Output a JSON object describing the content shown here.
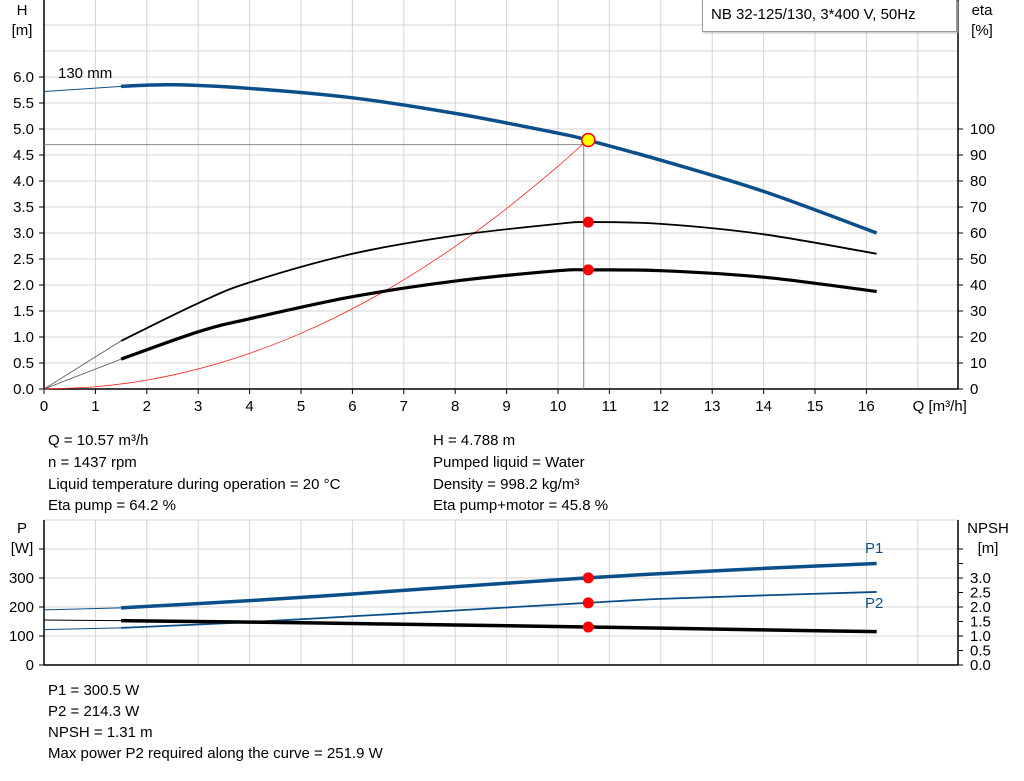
{
  "title_box": "NB 32-125/130, 3*400 V, 50Hz",
  "colors": {
    "head": "#0b4f8a",
    "eta": "#000000",
    "system": "#ff2020",
    "power": "#0b4f8a",
    "npsh": "#000000",
    "marker": "#ff0000",
    "op_point": "#ffff00"
  },
  "chart_data": [
    {
      "type": "line",
      "xlabel": "Q [m³/h]",
      "ylabel": "H\n[m]",
      "y2label": "eta\n[%]",
      "xlim": [
        0,
        17.8
      ],
      "ylim": [
        0,
        7.5
      ],
      "y2lim": [
        0,
        144
      ],
      "grid": true,
      "x_ticks": [
        0,
        1,
        2,
        3,
        4,
        5,
        6,
        7,
        8,
        9,
        10,
        11,
        12,
        13,
        14,
        15,
        16
      ],
      "y_ticks": [
        "0.0",
        "0.5",
        "1.0",
        "1.5",
        "2.0",
        "2.5",
        "3.0",
        "3.5",
        "4.0",
        "4.5",
        "5.0",
        "5.5",
        "6.0"
      ],
      "y2_ticks": [
        0,
        10,
        20,
        30,
        40,
        50,
        60,
        70,
        80,
        90,
        100
      ],
      "annotation": "130 mm",
      "series": [
        {
          "id": "head",
          "axis": "left",
          "x": [
            0,
            1.5,
            2.5,
            4,
            6,
            8,
            10,
            10.57,
            12,
            14,
            16.2
          ],
          "y": [
            5.72,
            5.82,
            5.85,
            5.78,
            5.6,
            5.3,
            4.92,
            4.788,
            4.4,
            3.8,
            3.0
          ]
        },
        {
          "id": "eta_pump",
          "axis": "right",
          "x": [
            1.5,
            3,
            4,
            6,
            8,
            10,
            10.57,
            12,
            14,
            16.2
          ],
          "y": [
            18.5,
            33,
            41,
            52,
            59,
            63.5,
            64.2,
            63.5,
            59.5,
            52
          ]
        },
        {
          "id": "eta_total",
          "axis": "right",
          "x": [
            1.5,
            3,
            4,
            6,
            8,
            10,
            10.57,
            12,
            14,
            16.2
          ],
          "y": [
            11.5,
            22,
            27,
            35.5,
            41.5,
            45.5,
            45.8,
            45.5,
            43,
            37.5
          ]
        },
        {
          "id": "system",
          "axis": "left",
          "x": [
            0,
            1,
            2,
            3,
            4,
            5,
            6,
            7,
            8,
            9,
            10,
            10.57
          ],
          "y": [
            0,
            0.043,
            0.171,
            0.386,
            0.686,
            1.071,
            1.543,
            2.1,
            2.742,
            3.471,
            4.285,
            4.788
          ]
        }
      ],
      "operating_point": {
        "q": 10.57,
        "h": 4.788
      }
    },
    {
      "type": "line",
      "ylabel": "P\n[W]",
      "y2label": "NPSH\n[m]",
      "xlim": [
        0,
        17.8
      ],
      "ylim": [
        0,
        500
      ],
      "y2lim": [
        0,
        5
      ],
      "grid": true,
      "y_ticks": [
        0,
        100,
        200,
        300
      ],
      "y2_ticks": [
        "0.0",
        "0.5",
        "1.0",
        "1.5",
        "2.0",
        "2.5",
        "3.0"
      ],
      "series": [
        {
          "name": "P1",
          "axis": "left",
          "x": [
            0,
            1.5,
            4,
            6,
            8,
            10.57,
            12,
            14,
            16.2
          ],
          "y": [
            190,
            197,
            222,
            245,
            270,
            300.5,
            315,
            333,
            350
          ]
        },
        {
          "name": "P2",
          "axis": "left",
          "x": [
            0,
            1.5,
            4,
            6,
            8,
            10.57,
            12,
            14,
            16.2
          ],
          "y": [
            122,
            128,
            148,
            168,
            188,
            214.3,
            228,
            240,
            252
          ]
        },
        {
          "id": "npsh",
          "axis": "right",
          "x": [
            0,
            1.5,
            4,
            6,
            8,
            10.57,
            12,
            14,
            16.2
          ],
          "y": [
            1.55,
            1.53,
            1.48,
            1.43,
            1.38,
            1.31,
            1.27,
            1.21,
            1.15
          ]
        }
      ]
    }
  ],
  "info_top": [
    "Q = 10.57 m³/h",
    "n = 1437 rpm",
    "Liquid temperature during operation = 20 °C",
    "Eta pump = 64.2 %"
  ],
  "info_top_right": [
    "H = 4.788 m",
    "Pumped liquid = Water",
    "Density = 998.2 kg/m³",
    "Eta pump+motor = 45.8 %"
  ],
  "info_bottom": [
    "P1 = 300.5 W",
    "P2 = 214.3 W",
    "NPSH = 1.31 m",
    "Max power P2 required along the curve = 251.9 W"
  ]
}
